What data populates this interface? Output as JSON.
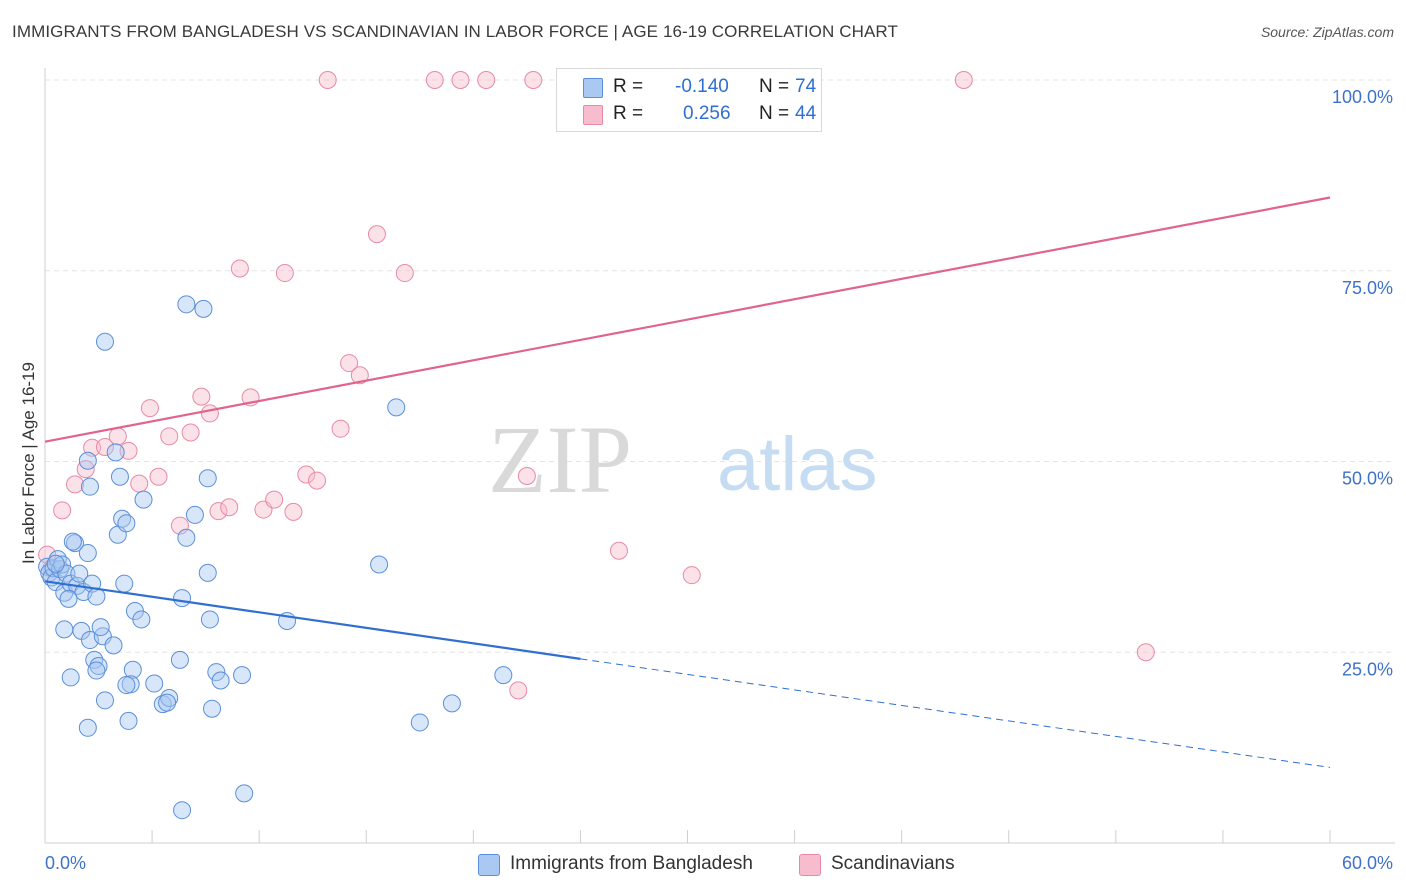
{
  "header": {
    "title": "IMMIGRANTS FROM BANGLADESH VS SCANDINAVIAN IN LABOR FORCE | AGE 16-19 CORRELATION CHART",
    "source": "Source: ZipAtlas.com"
  },
  "watermark": {
    "zip": "ZIP",
    "atlas": "atlas"
  },
  "legend": {
    "rows": [
      {
        "r_label": "R =",
        "r_value": "-0.140",
        "n_label": "N =",
        "n_value": "74"
      },
      {
        "r_label": "R =",
        "r_value": "0.256",
        "n_label": "N =",
        "n_value": "44"
      }
    ]
  },
  "bottom_legend": {
    "items": [
      {
        "label": "Immigrants from Bangladesh"
      },
      {
        "label": "Scandinavians"
      }
    ]
  },
  "colors": {
    "series_a_fill": "#a9c8f2",
    "series_a_stroke": "#5b8fd9",
    "series_a_line": "#2f6fd0",
    "series_b_fill": "#f7bccd",
    "series_b_stroke": "#e88aa7",
    "series_b_line": "#e0648d",
    "tick_text": "#3d72c9",
    "grid": "#e4e4e4"
  },
  "chart_data": {
    "type": "scatter",
    "title": "IMMIGRANTS FROM BANGLADESH VS SCANDINAVIAN IN LABOR FORCE | AGE 16-19 CORRELATION CHART",
    "xlabel": "",
    "ylabel": "In Labor Force | Age 16-19",
    "xlim": [
      0,
      60
    ],
    "ylim": [
      0,
      100
    ],
    "x_ticks": [
      "0.0%",
      "60.0%"
    ],
    "y_ticks": [
      {
        "value": 25,
        "label": "25.0%"
      },
      {
        "value": 50,
        "label": "50.0%"
      },
      {
        "value": 75,
        "label": "75.0%"
      },
      {
        "value": 100,
        "label": "100.0%"
      }
    ],
    "grid": true,
    "legend_position": "top-center",
    "series": [
      {
        "name": "Immigrants from Bangladesh",
        "R": -0.14,
        "N": 74,
        "trend": {
          "x_start": 0,
          "y_start": 34.3,
          "x_solid_end": 25,
          "x_end": 60,
          "y_end": 9.9
        },
        "points": [
          [
            0.1,
            36.2
          ],
          [
            0.2,
            35.4
          ],
          [
            0.3,
            34.8
          ],
          [
            0.4,
            36.0
          ],
          [
            0.5,
            34.2
          ],
          [
            0.6,
            37.2
          ],
          [
            0.7,
            35.9
          ],
          [
            0.8,
            36.5
          ],
          [
            0.9,
            32.8
          ],
          [
            1.0,
            35.3
          ],
          [
            1.2,
            34.0
          ],
          [
            1.4,
            39.3
          ],
          [
            1.5,
            33.7
          ],
          [
            1.6,
            35.3
          ],
          [
            1.8,
            32.9
          ],
          [
            2.0,
            38.0
          ],
          [
            2.2,
            34.0
          ],
          [
            2.4,
            32.3
          ],
          [
            1.1,
            32.0
          ],
          [
            1.7,
            27.8
          ],
          [
            0.9,
            28.0
          ],
          [
            2.1,
            26.6
          ],
          [
            2.7,
            27.1
          ],
          [
            2.6,
            28.3
          ],
          [
            3.2,
            25.9
          ],
          [
            2.3,
            24.0
          ],
          [
            2.5,
            23.2
          ],
          [
            2.4,
            22.6
          ],
          [
            1.2,
            21.7
          ],
          [
            4.2,
            30.4
          ],
          [
            4.5,
            29.3
          ],
          [
            3.7,
            34.0
          ],
          [
            3.4,
            40.4
          ],
          [
            3.6,
            42.5
          ],
          [
            3.8,
            41.9
          ],
          [
            4.6,
            45.0
          ],
          [
            3.5,
            48.0
          ],
          [
            2.1,
            46.7
          ],
          [
            2.0,
            50.1
          ],
          [
            1.3,
            39.5
          ],
          [
            3.3,
            51.2
          ],
          [
            4.1,
            22.7
          ],
          [
            4.0,
            20.8
          ],
          [
            3.8,
            20.7
          ],
          [
            5.1,
            20.9
          ],
          [
            5.5,
            18.2
          ],
          [
            5.8,
            19.0
          ],
          [
            5.7,
            18.4
          ],
          [
            6.3,
            24.0
          ],
          [
            6.4,
            32.1
          ],
          [
            6.6,
            40.0
          ],
          [
            7.0,
            43.0
          ],
          [
            7.6,
            35.4
          ],
          [
            7.7,
            29.3
          ],
          [
            7.6,
            47.8
          ],
          [
            7.8,
            17.6
          ],
          [
            8.0,
            22.4
          ],
          [
            8.2,
            21.3
          ],
          [
            9.2,
            22.0
          ],
          [
            9.3,
            6.5
          ],
          [
            6.4,
            4.3
          ],
          [
            2.0,
            15.1
          ],
          [
            3.9,
            16.0
          ],
          [
            2.8,
            18.7
          ],
          [
            6.6,
            70.6
          ],
          [
            7.4,
            70.0
          ],
          [
            2.8,
            65.7
          ],
          [
            11.3,
            29.1
          ],
          [
            15.6,
            36.5
          ],
          [
            16.4,
            57.1
          ],
          [
            17.5,
            15.8
          ],
          [
            19.0,
            18.3
          ],
          [
            21.4,
            22.0
          ],
          [
            0.5,
            36.6
          ]
        ]
      },
      {
        "name": "Scandinavians",
        "R": 0.256,
        "N": 44,
        "trend": {
          "x_start": 0,
          "y_start": 52.6,
          "x_end": 60,
          "y_end": 84.6
        },
        "points": [
          [
            0.1,
            37.8
          ],
          [
            0.8,
            43.6
          ],
          [
            1.4,
            47.0
          ],
          [
            1.9,
            49.0
          ],
          [
            2.2,
            51.8
          ],
          [
            2.8,
            51.9
          ],
          [
            3.4,
            53.3
          ],
          [
            3.9,
            51.4
          ],
          [
            4.4,
            47.1
          ],
          [
            4.9,
            57.0
          ],
          [
            5.3,
            48.0
          ],
          [
            5.8,
            53.3
          ],
          [
            6.3,
            41.6
          ],
          [
            6.8,
            53.8
          ],
          [
            7.3,
            58.5
          ],
          [
            7.7,
            56.3
          ],
          [
            8.1,
            43.5
          ],
          [
            8.6,
            44.0
          ],
          [
            9.1,
            75.3
          ],
          [
            9.6,
            58.4
          ],
          [
            10.2,
            43.7
          ],
          [
            10.7,
            45.0
          ],
          [
            11.2,
            74.7
          ],
          [
            11.6,
            43.4
          ],
          [
            12.2,
            48.3
          ],
          [
            12.7,
            47.5
          ],
          [
            13.2,
            100.0
          ],
          [
            13.8,
            54.3
          ],
          [
            14.2,
            62.9
          ],
          [
            14.7,
            61.3
          ],
          [
            15.5,
            79.8
          ],
          [
            16.8,
            74.7
          ],
          [
            18.2,
            100.0
          ],
          [
            19.4,
            100.0
          ],
          [
            20.6,
            100.0
          ],
          [
            22.5,
            48.1
          ],
          [
            22.8,
            100.0
          ],
          [
            24.3,
            100.0
          ],
          [
            26.8,
            38.3
          ],
          [
            30.2,
            35.1
          ],
          [
            42.9,
            100.0
          ],
          [
            51.4,
            25.0
          ],
          [
            22.1,
            20.0
          ],
          [
            0.3,
            36.0
          ]
        ]
      }
    ]
  }
}
